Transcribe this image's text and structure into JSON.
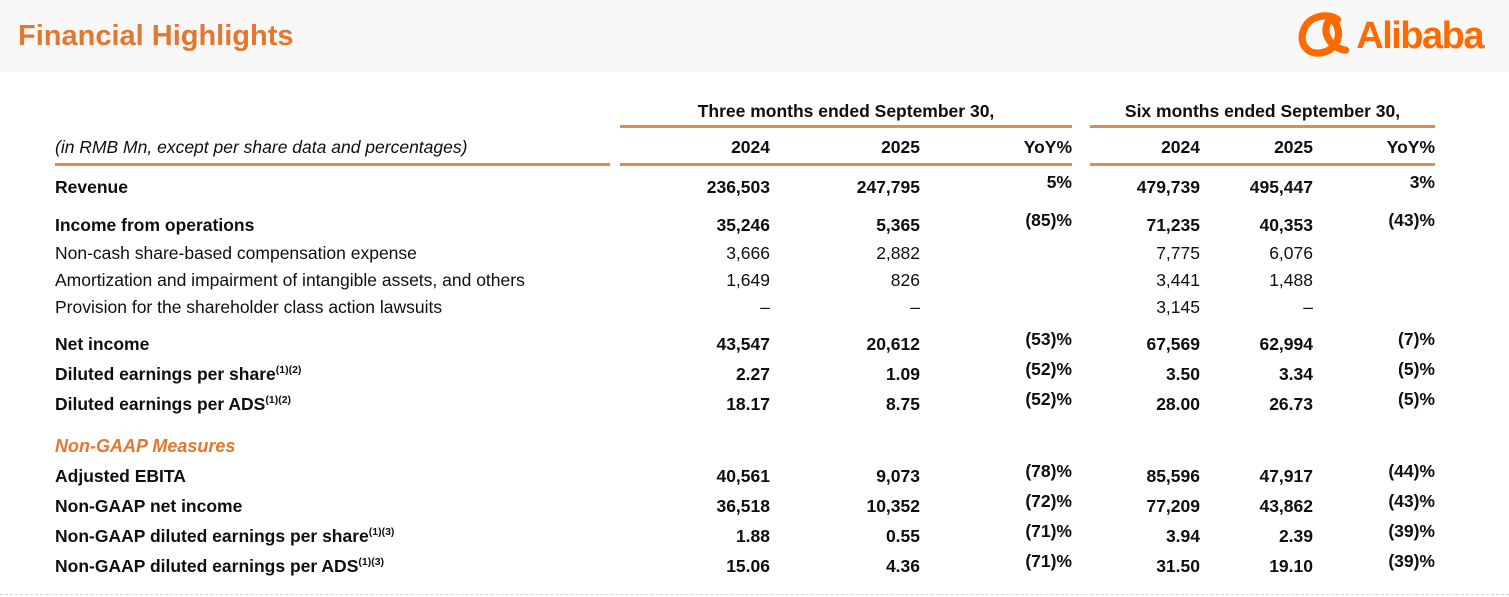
{
  "header": {
    "title": "Financial Highlights",
    "logo_text": "Alibaba"
  },
  "colors": {
    "accent_orange": "#e2772f",
    "rule_orange": "#e08b52",
    "logo_orange": "#ff6a00"
  },
  "table": {
    "units_note": "(in RMB Mn, except per share data and percentages)",
    "groups": [
      {
        "label": "Three months ended September 30,"
      },
      {
        "label": "Six months ended September 30,"
      }
    ],
    "column_headers": [
      "2024",
      "2025",
      "YoY%"
    ],
    "rows": [
      {
        "label": "Revenue",
        "sup": "",
        "emphasis": "bold",
        "gap_before": false,
        "values": [
          "236,503",
          "247,795",
          "5%",
          "479,739",
          "495,447",
          "3%"
        ]
      },
      {
        "label": "Income from operations",
        "sup": "",
        "emphasis": "bold",
        "gap_before": true,
        "values": [
          "35,246",
          "5,365",
          "(85)%",
          "71,235",
          "40,353",
          "(43)%"
        ]
      },
      {
        "label": "Non-cash share-based compensation expense",
        "sup": "",
        "emphasis": "normal",
        "gap_before": false,
        "values": [
          "3,666",
          "2,882",
          "",
          "7,775",
          "6,076",
          ""
        ]
      },
      {
        "label": "Amortization and impairment of intangible assets, and others",
        "sup": "",
        "emphasis": "normal",
        "gap_before": false,
        "values": [
          "1,649",
          "826",
          "",
          "3,441",
          "1,488",
          ""
        ]
      },
      {
        "label": "Provision for the shareholder class action lawsuits",
        "sup": "",
        "emphasis": "normal",
        "gap_before": false,
        "values": [
          "–",
          "–",
          "",
          "3,145",
          "–",
          ""
        ]
      },
      {
        "label": "Net income",
        "sup": "",
        "emphasis": "bold",
        "gap_before": true,
        "values": [
          "43,547",
          "20,612",
          "(53)%",
          "67,569",
          "62,994",
          "(7)%"
        ]
      },
      {
        "label": "Diluted earnings per share",
        "sup": "(1)(2)",
        "emphasis": "bold",
        "gap_before": false,
        "values": [
          "2.27",
          "1.09",
          "(52)%",
          "3.50",
          "3.34",
          "(5)%"
        ]
      },
      {
        "label": "Diluted earnings per ADS",
        "sup": "(1)(2)",
        "emphasis": "bold",
        "gap_before": false,
        "values": [
          "18.17",
          "8.75",
          "(52)%",
          "28.00",
          "26.73",
          "(5)%"
        ]
      },
      {
        "label": "Non-GAAP Measures",
        "sup": "",
        "emphasis": "section",
        "gap_before": true,
        "values": [
          "",
          "",
          "",
          "",
          "",
          ""
        ]
      },
      {
        "label": "Adjusted EBITA",
        "sup": "",
        "emphasis": "bold",
        "gap_before": false,
        "values": [
          "40,561",
          "9,073",
          "(78)%",
          "85,596",
          "47,917",
          "(44)%"
        ]
      },
      {
        "label": "Non-GAAP net income",
        "sup": "",
        "emphasis": "bold",
        "gap_before": false,
        "values": [
          "36,518",
          "10,352",
          "(72)%",
          "77,209",
          "43,862",
          "(43)%"
        ]
      },
      {
        "label": "Non-GAAP diluted earnings per share",
        "sup": "(1)(3)",
        "emphasis": "bold",
        "gap_before": false,
        "values": [
          "1.88",
          "0.55",
          "(71)%",
          "3.94",
          "2.39",
          "(39)%"
        ]
      },
      {
        "label": "Non-GAAP diluted earnings per ADS",
        "sup": "(1)(3)",
        "emphasis": "bold",
        "gap_before": false,
        "values": [
          "15.06",
          "4.36",
          "(71)%",
          "31.50",
          "19.10",
          "(39)%"
        ]
      }
    ]
  }
}
